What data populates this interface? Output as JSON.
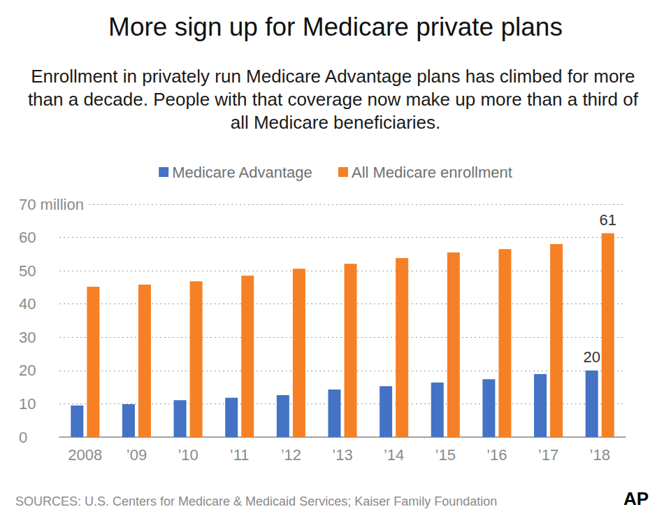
{
  "chart_data": {
    "type": "bar",
    "title": "More sign up for Medicare private plans",
    "subtitle": "Enrollment in privately run Medicare Advantage plans has climbed for more than a decade. People with that coverage now make up more than a third of all Medicare beneficiaries.",
    "categories": [
      "2008",
      "’09",
      "’10",
      "’11",
      "’12",
      "’13",
      "’14",
      "’15",
      "’16",
      "’17",
      "’18"
    ],
    "series": [
      {
        "name": "Medicare Advantage",
        "color": "#4472c4",
        "values": [
          9.5,
          9.9,
          11.1,
          11.8,
          12.6,
          14.3,
          15.3,
          16.4,
          17.4,
          18.9,
          20.0
        ],
        "value_labels": [
          null,
          null,
          null,
          null,
          null,
          null,
          null,
          null,
          null,
          null,
          "20"
        ]
      },
      {
        "name": "All Medicare enrollment",
        "color": "#f58025",
        "values": [
          45.2,
          45.8,
          46.8,
          48.5,
          50.6,
          52.1,
          53.8,
          55.5,
          56.5,
          58.0,
          61.3
        ],
        "value_labels": [
          null,
          null,
          null,
          null,
          null,
          null,
          null,
          null,
          null,
          null,
          "61"
        ]
      }
    ],
    "ylim": [
      0,
      70
    ],
    "yticks": [
      0,
      10,
      20,
      30,
      40,
      50,
      60,
      {
        "value": 70,
        "label": "70 million"
      }
    ],
    "grid": true,
    "legend": "top",
    "data_labels": true,
    "source": "SOURCES: U.S. Centers for Medicare & Medicaid Services; Kaiser Family Foundation",
    "credit": "AP"
  }
}
